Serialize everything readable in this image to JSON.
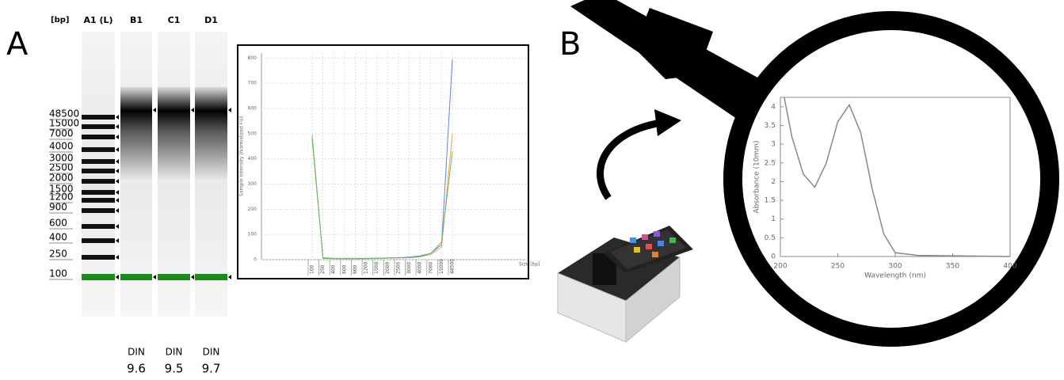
{
  "panel_labels": [
    "A",
    "B"
  ],
  "gel": {
    "unit_label": "[bp]",
    "lanes": [
      "A1 (L)",
      "B1",
      "C1",
      "D1"
    ],
    "din_label": "DIN",
    "din": [
      9.6,
      9.5,
      9.7
    ]
  },
  "chart_data": [
    {
      "type": "line",
      "ylabel": "Sample Intensity [Normalized FU]",
      "xlabel": "Size [bp]",
      "categories": [
        "100",
        "250",
        "400",
        "600",
        "900",
        "1200",
        "1500",
        "2000",
        "2500",
        "3000",
        "4000",
        "7000",
        "15000",
        "48500"
      ],
      "series": [
        {
          "color": "#6b7fe0",
          "values": [
            495,
            8,
            5,
            5,
            5,
            5,
            6,
            7,
            8,
            10,
            15,
            25,
            60,
            795
          ]
        },
        {
          "color": "#f0a060",
          "values": [
            495,
            6,
            4,
            4,
            4,
            4,
            5,
            6,
            7,
            8,
            12,
            20,
            50,
            500
          ]
        },
        {
          "color": "#5fbf5f",
          "values": [
            480,
            6,
            4,
            4,
            4,
            4,
            5,
            6,
            7,
            8,
            12,
            25,
            70,
            430
          ]
        }
      ],
      "ylim": [
        0,
        820
      ],
      "yticks": [
        0,
        100,
        200,
        300,
        400,
        500,
        600,
        700,
        800
      ],
      "grid": true
    },
    {
      "type": "line",
      "ylabel": "Absorbance (10mm)",
      "xlabel": "Wavelength (nm)",
      "x": [
        203,
        210,
        220,
        230,
        240,
        250,
        260,
        270,
        280,
        290,
        300,
        320,
        350,
        400
      ],
      "series": [
        {
          "color": "#888888",
          "values": [
            4.3,
            3.2,
            2.2,
            1.85,
            2.5,
            3.6,
            4.05,
            3.3,
            1.8,
            0.6,
            0.1,
            0.03,
            0.02,
            0.0
          ]
        }
      ],
      "xlim": [
        200,
        400
      ],
      "xticks": [
        200,
        250,
        300,
        350,
        400
      ],
      "ylim": [
        0,
        4.25
      ],
      "yticks": [
        0,
        0.5,
        1,
        1.5,
        2,
        2.5,
        3,
        3.5,
        4
      ],
      "grid": false
    }
  ]
}
